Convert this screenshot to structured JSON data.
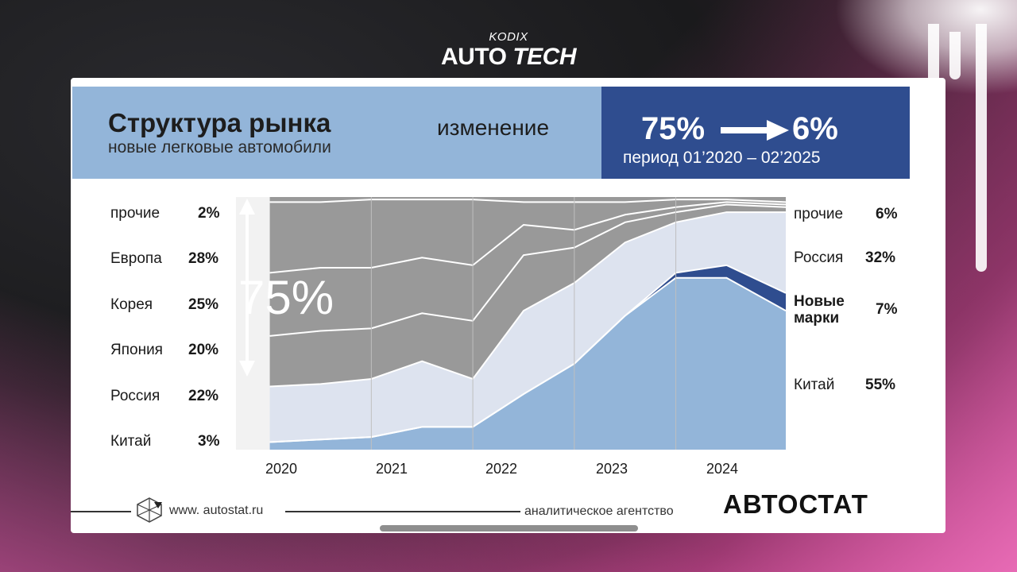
{
  "brand": {
    "small": "KODIX",
    "big_a": "AUTO",
    "big_b": "TECH"
  },
  "header": {
    "title": "Структура рынка",
    "subtitle": "новые легковые автомобили",
    "change_label": "изменение",
    "change_from": "75%",
    "change_to": "6%",
    "period": "период 01’2020 – 02’2025"
  },
  "left_labels": [
    {
      "label": "прочие",
      "value": "2%"
    },
    {
      "label": "Европа",
      "value": "28%"
    },
    {
      "label": "Корея",
      "value": "25%"
    },
    {
      "label": "Япония",
      "value": "20%"
    },
    {
      "label": "Россия",
      "value": "22%"
    },
    {
      "label": "Китай",
      "value": "3%"
    }
  ],
  "right_labels": [
    {
      "label": "прочие",
      "value": "6%"
    },
    {
      "label": "Россия",
      "value": "32%"
    },
    {
      "label": "Новые марки",
      "value": "7%"
    },
    {
      "label": "Китай",
      "value": "55%"
    }
  ],
  "overlay_label": "75%",
  "footer": {
    "url": "www. autostat.ru",
    "agency": "аналитическое агентство",
    "brand": "АВТОСТАТ"
  },
  "colors": {
    "china": "#93b5d9",
    "new_brands": "#2f4d8f",
    "russia": "#dde3ef",
    "foreign": "#999999",
    "header_left": "#93b5d9",
    "header_right": "#2f4d8f"
  },
  "chart_data": {
    "type": "area",
    "stacked": true,
    "x": [
      "2020-01",
      "2020-07",
      "2021-01",
      "2021-07",
      "2022-01",
      "2022-07",
      "2023-01",
      "2023-07",
      "2024-01",
      "2024-07",
      "2025-02"
    ],
    "x_tick_labels": [
      "2020",
      "2021",
      "2022",
      "2023",
      "2024"
    ],
    "ylim": [
      0,
      100
    ],
    "series": [
      {
        "name": "Китай",
        "values": [
          3,
          4,
          5,
          9,
          9,
          22,
          34,
          53,
          68,
          68,
          55
        ]
      },
      {
        "name": "Новые марки",
        "values": [
          0,
          0,
          0,
          0,
          0,
          0,
          0,
          0,
          2,
          5,
          7
        ]
      },
      {
        "name": "Россия",
        "values": [
          22,
          22,
          23,
          26,
          19,
          33,
          32,
          29,
          20,
          21,
          32
        ]
      },
      {
        "name": "Япония",
        "values": [
          20,
          21,
          20,
          19,
          23,
          22,
          14,
          8,
          4,
          3,
          2
        ]
      },
      {
        "name": "Корея",
        "values": [
          25,
          25,
          24,
          22,
          22,
          12,
          7,
          3,
          2,
          1,
          1
        ]
      },
      {
        "name": "Европа",
        "values": [
          28,
          26,
          27,
          23,
          26,
          9,
          11,
          5,
          3,
          1,
          1
        ]
      },
      {
        "name": "прочие",
        "values": [
          2,
          2,
          1,
          1,
          1,
          2,
          2,
          2,
          1,
          1,
          2
        ]
      }
    ]
  }
}
